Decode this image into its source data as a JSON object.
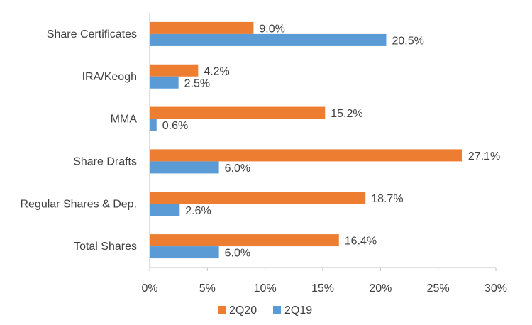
{
  "chart_data": {
    "type": "bar",
    "orientation": "horizontal",
    "categories": [
      "Share Certificates",
      "IRA/Keogh",
      "MMA",
      "Share Drafts",
      "Regular Shares & Dep.",
      "Total Shares"
    ],
    "series": [
      {
        "name": "2Q20",
        "color": "#ED7D31",
        "values": [
          9.0,
          4.2,
          15.2,
          27.1,
          18.7,
          16.4
        ],
        "labels": [
          "9.0%",
          "4.2%",
          "15.2%",
          "27.1%",
          "18.7%",
          "16.4%"
        ]
      },
      {
        "name": "2Q19",
        "color": "#5B9BD5",
        "values": [
          20.5,
          2.5,
          0.6,
          6.0,
          2.6,
          6.0
        ],
        "labels": [
          "20.5%",
          "2.5%",
          "0.6%",
          "6.0%",
          "2.6%",
          "6.0%"
        ]
      }
    ],
    "xlim": [
      0,
      30
    ],
    "xticks": [
      "0%",
      "5%",
      "10%",
      "15%",
      "20%",
      "25%",
      "30%"
    ],
    "grid": false,
    "legend_position": "bottom"
  }
}
